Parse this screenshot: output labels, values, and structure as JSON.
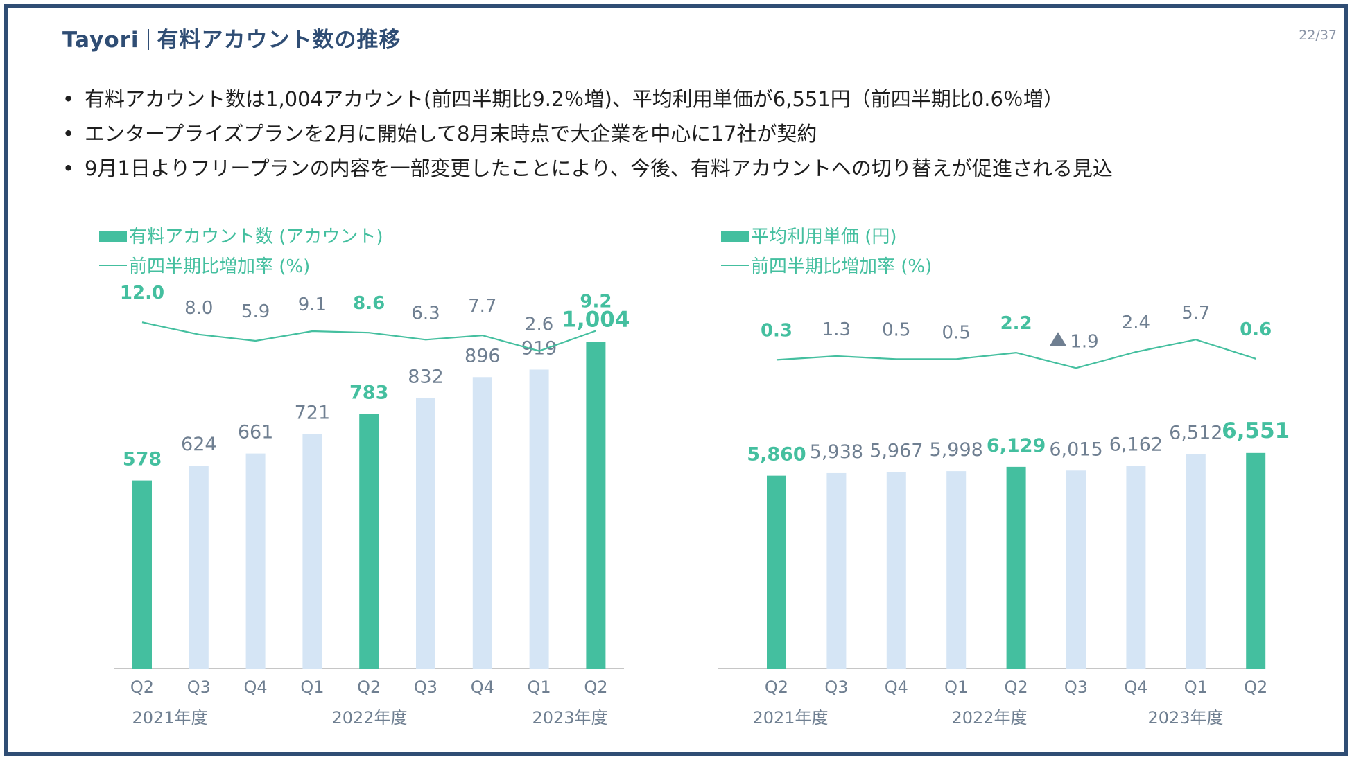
{
  "header": {
    "title_brand": "Tayori",
    "title_main": "有料アカウント数の推移",
    "page": "22/37"
  },
  "bullets": [
    "有料アカウント数は1,004アカウント(前四半期比9.2％増)、平均利用単価が6,551円（前四半期比0.6％増）",
    "エンタープライズプランを2月に開始して8月末時点で大企業を中心に17社が契約",
    "9月1日よりフリープランの内容を一部変更したことにより、今後、有料アカウントへの切り替えが促進される見込"
  ],
  "colors": {
    "accent": "#44bf9f",
    "light": "#d5e5f5",
    "line": "#44bf9f",
    "label": "#6f7f91",
    "axis": "#b3b3b3",
    "triangle": "#6f7f91"
  },
  "chart_data": [
    {
      "type": "bar",
      "legend_bar": "有料アカウント数 (アカウント)",
      "legend_line": "前四半期比増加率 (%)",
      "categories": [
        "Q2",
        "Q3",
        "Q4",
        "Q1",
        "Q2",
        "Q3",
        "Q4",
        "Q1",
        "Q2"
      ],
      "years": [
        "2021年度",
        "2022年度",
        "2023年度"
      ],
      "values": [
        578,
        624,
        661,
        721,
        783,
        832,
        896,
        919,
        1004
      ],
      "value_labels": [
        "578",
        "624",
        "661",
        "721",
        "783",
        "832",
        "896",
        "919",
        "1,004"
      ],
      "highlight": [
        true,
        false,
        false,
        false,
        true,
        false,
        false,
        false,
        true
      ],
      "rates": [
        12.0,
        8.0,
        5.9,
        9.1,
        8.6,
        6.3,
        7.7,
        2.6,
        9.2
      ],
      "rate_labels": [
        "12.0",
        "8.0",
        "5.9",
        "9.1",
        "8.6",
        "6.3",
        "7.7",
        "2.6",
        "9.2"
      ],
      "rate_negative": [
        false,
        false,
        false,
        false,
        false,
        false,
        false,
        false,
        false
      ],
      "ylim": [
        0,
        1150
      ]
    },
    {
      "type": "bar",
      "legend_bar": "平均利用単価 (円)",
      "legend_line": "前四半期比増加率 (%)",
      "categories": [
        "Q2",
        "Q3",
        "Q4",
        "Q1",
        "Q2",
        "Q3",
        "Q4",
        "Q1",
        "Q2"
      ],
      "years": [
        "2021年度",
        "2022年度",
        "2023年度"
      ],
      "values": [
        5860,
        5938,
        5967,
        5998,
        6129,
        6015,
        6162,
        6512,
        6551
      ],
      "value_labels": [
        "5,860",
        "5,938",
        "5,967",
        "5,998",
        "6,129",
        "6,015",
        "6,162",
        "6,512",
        "6,551"
      ],
      "highlight": [
        true,
        false,
        false,
        false,
        true,
        false,
        false,
        false,
        true
      ],
      "rates": [
        0.3,
        1.3,
        0.5,
        0.5,
        2.2,
        -1.9,
        2.4,
        5.7,
        0.6
      ],
      "rate_labels": [
        "0.3",
        "1.3",
        "0.5",
        "0.5",
        "2.2",
        "1.9",
        "2.4",
        "5.7",
        "0.6"
      ],
      "rate_negative": [
        false,
        false,
        false,
        false,
        false,
        true,
        false,
        false,
        false
      ],
      "ylim": [
        0,
        8000
      ]
    }
  ]
}
